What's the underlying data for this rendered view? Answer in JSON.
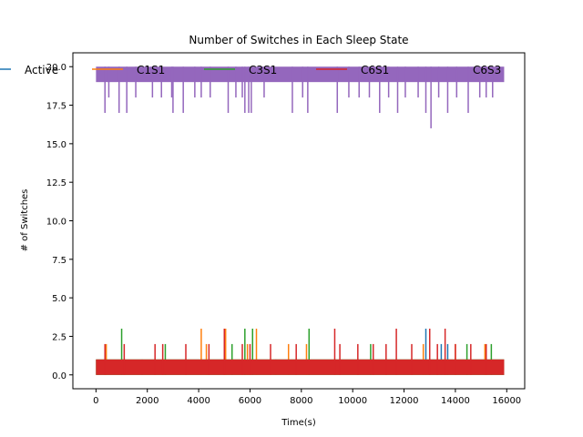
{
  "chart_data": {
    "type": "line",
    "title": "Number of Switches in Each Sleep State",
    "xlabel": "Time(s)",
    "ylabel": "# of Switches",
    "xlim": [
      -900,
      16700
    ],
    "ylim": [
      -0.9,
      20.9
    ],
    "x_ticks": [
      0,
      2000,
      4000,
      6000,
      8000,
      10000,
      12000,
      14000,
      16000
    ],
    "x_tick_labels": [
      "0",
      "2000",
      "4000",
      "6000",
      "8000",
      "10000",
      "12000",
      "14000",
      "16000"
    ],
    "y_ticks": [
      0,
      2.5,
      5,
      7.5,
      10,
      12.5,
      15,
      17.5,
      20
    ],
    "y_tick_labels": [
      "0.0",
      "2.5",
      "5.0",
      "7.5",
      "10.0",
      "12.5",
      "15.0",
      "17.5",
      "20.0"
    ],
    "grid": false,
    "legend_position": "top, single row",
    "series": [
      {
        "name": "Active",
        "color": "#1f77b4",
        "baseline": 0,
        "band_top": 1,
        "spikes": [
          [
            1800,
            1
          ],
          [
            7000,
            1
          ],
          [
            12850,
            3
          ],
          [
            13450,
            2
          ],
          [
            13700,
            2
          ]
        ]
      },
      {
        "name": "C1S1",
        "color": "#ff7f0e",
        "baseline": 0,
        "band_top": 1,
        "spikes": [
          [
            400,
            2
          ],
          [
            4100,
            3
          ],
          [
            4300,
            2
          ],
          [
            5050,
            3
          ],
          [
            5900,
            2
          ],
          [
            6250,
            3
          ],
          [
            7500,
            2
          ],
          [
            8200,
            2
          ],
          [
            12750,
            2
          ],
          [
            14000,
            2
          ],
          [
            15150,
            2
          ]
        ]
      },
      {
        "name": "C3S1",
        "color": "#2ca02c",
        "baseline": 0,
        "band_top": 1,
        "spikes": [
          [
            1000,
            3
          ],
          [
            2700,
            2
          ],
          [
            5300,
            2
          ],
          [
            5800,
            3
          ],
          [
            6100,
            3
          ],
          [
            8300,
            3
          ],
          [
            10700,
            2
          ],
          [
            14450,
            2
          ],
          [
            15400,
            2
          ]
        ]
      },
      {
        "name": "C6S1",
        "color": "#d62728",
        "baseline": 0,
        "band_top": 1,
        "spikes": [
          [
            350,
            2
          ],
          [
            1100,
            2
          ],
          [
            2300,
            2
          ],
          [
            2600,
            2
          ],
          [
            3500,
            2
          ],
          [
            4400,
            2
          ],
          [
            5000,
            3
          ],
          [
            5700,
            2
          ],
          [
            6000,
            2
          ],
          [
            6800,
            2
          ],
          [
            7800,
            2
          ],
          [
            9300,
            3
          ],
          [
            9500,
            2
          ],
          [
            10200,
            2
          ],
          [
            10800,
            2
          ],
          [
            11300,
            2
          ],
          [
            11700,
            3
          ],
          [
            12300,
            2
          ],
          [
            13000,
            3
          ],
          [
            13300,
            2
          ],
          [
            13600,
            3
          ],
          [
            14000,
            2
          ],
          [
            14600,
            2
          ],
          [
            15200,
            2
          ]
        ]
      },
      {
        "name": "C6S3",
        "color": "#9467bd",
        "baseline": 20,
        "band_bottom": 19,
        "dips": [
          [
            350,
            17
          ],
          [
            500,
            18
          ],
          [
            900,
            17
          ],
          [
            1200,
            17
          ],
          [
            1550,
            18
          ],
          [
            2200,
            18
          ],
          [
            2550,
            18
          ],
          [
            2950,
            18
          ],
          [
            3000,
            17
          ],
          [
            3400,
            17
          ],
          [
            3850,
            18
          ],
          [
            4100,
            18
          ],
          [
            4450,
            18
          ],
          [
            5150,
            17
          ],
          [
            5450,
            18
          ],
          [
            5700,
            18
          ],
          [
            5800,
            17
          ],
          [
            5950,
            17
          ],
          [
            6050,
            17
          ],
          [
            6550,
            18
          ],
          [
            7650,
            17
          ],
          [
            8050,
            18
          ],
          [
            8250,
            17
          ],
          [
            9400,
            17
          ],
          [
            9850,
            18
          ],
          [
            10250,
            18
          ],
          [
            10650,
            18
          ],
          [
            11050,
            17
          ],
          [
            11400,
            18
          ],
          [
            11750,
            17
          ],
          [
            12050,
            18
          ],
          [
            12550,
            18
          ],
          [
            12850,
            17
          ],
          [
            13050,
            16
          ],
          [
            13350,
            18
          ],
          [
            13700,
            17
          ],
          [
            14050,
            18
          ],
          [
            14500,
            17
          ],
          [
            14950,
            18
          ],
          [
            15200,
            18
          ],
          [
            15450,
            18
          ]
        ]
      }
    ]
  }
}
